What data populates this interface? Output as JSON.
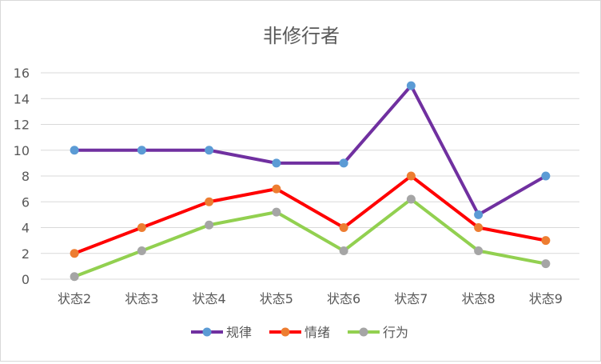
{
  "chart_data": {
    "type": "line",
    "title": "非修行者",
    "categories": [
      "状态2",
      "状态3",
      "状态4",
      "状态5",
      "状态6",
      "状态7",
      "状态8",
      "状态9"
    ],
    "series": [
      {
        "name": "规律",
        "values": [
          10,
          10,
          10,
          9,
          9,
          15,
          5,
          8
        ],
        "line_color": "#7030a0",
        "marker_color": "#5b9bd5"
      },
      {
        "name": "情绪",
        "values": [
          2,
          4,
          6,
          7,
          4,
          8,
          4,
          3
        ],
        "line_color": "#ff0000",
        "marker_color": "#ed7d31"
      },
      {
        "name": "行为",
        "values": [
          0.2,
          2.2,
          4.2,
          5.2,
          2.2,
          6.2,
          2.2,
          1.2
        ],
        "line_color": "#92d050",
        "marker_color": "#a5a5a5"
      }
    ],
    "ylim": [
      0,
      16
    ],
    "yticks": [
      "0",
      "2",
      "4",
      "6",
      "8",
      "10",
      "12",
      "14",
      "16"
    ],
    "grid": true,
    "legend_position": "bottom"
  }
}
